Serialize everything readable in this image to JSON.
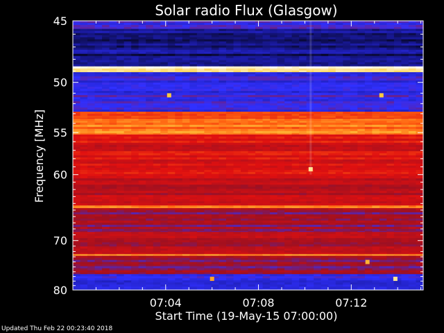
{
  "chart_data": {
    "type": "heatmap",
    "title": "Solar radio Flux (Glasgow)",
    "xlabel": "Start Time (19-May-15 07:00:00)",
    "ylabel": "Frequency [MHz]",
    "x_ticks": [
      "07:04",
      "07:08",
      "07:12"
    ],
    "x_tick_minutes": [
      4,
      8,
      12
    ],
    "xlim_minutes": [
      0,
      15.1
    ],
    "y_ticks": [
      45,
      50,
      55,
      60,
      70,
      80
    ],
    "ylim": [
      45,
      80
    ],
    "y_scale": "reciprocal",
    "grid": false,
    "colorscale": [
      "#000000",
      "#1a1aa0",
      "#3030ff",
      "#a01020",
      "#e01010",
      "#ff6010",
      "#ffd040",
      "#ffffff"
    ],
    "frequency_bands": [
      {
        "f_start": 44.8,
        "f_end": 45.6,
        "level": 0.3
      },
      {
        "f_start": 45.6,
        "f_end": 48.6,
        "level": 0.12
      },
      {
        "f_start": 48.6,
        "f_end": 49.1,
        "level": 0.95
      },
      {
        "f_start": 49.1,
        "f_end": 52.8,
        "level": 0.28
      },
      {
        "f_start": 52.8,
        "f_end": 53.5,
        "level": 0.62
      },
      {
        "f_start": 53.5,
        "f_end": 55.2,
        "level": 0.74
      },
      {
        "f_start": 55.2,
        "f_end": 60.5,
        "level": 0.55
      },
      {
        "f_start": 60.5,
        "f_end": 64.3,
        "level": 0.5
      },
      {
        "f_start": 64.3,
        "f_end": 64.7,
        "level": 0.78
      },
      {
        "f_start": 64.7,
        "f_end": 68.5,
        "level": 0.42
      },
      {
        "f_start": 68.5,
        "f_end": 72.5,
        "level": 0.48
      },
      {
        "f_start": 72.5,
        "f_end": 72.8,
        "level": 0.8
      },
      {
        "f_start": 72.8,
        "f_end": 76.5,
        "level": 0.4
      },
      {
        "f_start": 76.5,
        "f_end": 80.5,
        "level": 0.25
      }
    ],
    "bursts": [
      {
        "t_minute": 10.25,
        "f_mhz": 59.3,
        "level": 0.92
      },
      {
        "t_minute": 4.15,
        "f_mhz": 51.2,
        "level": 0.85
      },
      {
        "t_minute": 13.3,
        "f_mhz": 51.2,
        "level": 0.85
      },
      {
        "t_minute": 13.9,
        "f_mhz": 77.5,
        "level": 0.92
      },
      {
        "t_minute": 6.0,
        "f_mhz": 77.5,
        "level": 0.8
      },
      {
        "t_minute": 12.7,
        "f_mhz": 74.0,
        "level": 0.82
      }
    ]
  },
  "footer": {
    "updated": "Updated Thu Feb 22 00:23:40 2018"
  },
  "colors": {
    "background": "#000000",
    "axis": "#ffffff"
  }
}
